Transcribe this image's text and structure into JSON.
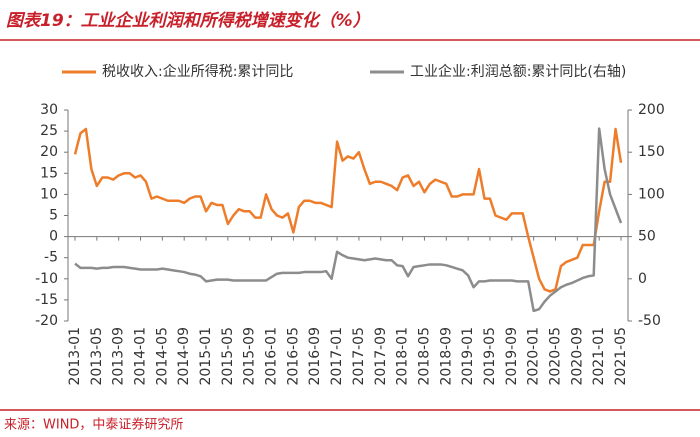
{
  "chart_data": {
    "type": "line",
    "title": "图表19：工业企业利润和所得税增速变化（%）",
    "source": "来源：WIND，中泰证券研究所",
    "categories": [
      "2013-01",
      null,
      null,
      null,
      "2013-05",
      null,
      null,
      null,
      "2013-09",
      null,
      null,
      null,
      "2014-01",
      null,
      null,
      null,
      "2014-05",
      null,
      null,
      null,
      "2014-09",
      null,
      null,
      null,
      "2015-01",
      null,
      null,
      null,
      "2015-05",
      null,
      null,
      null,
      "2015-09",
      null,
      null,
      null,
      "2016-01",
      null,
      null,
      null,
      "2016-05",
      null,
      null,
      null,
      "2016-09",
      null,
      null,
      null,
      "2017-01",
      null,
      null,
      null,
      "2017-05",
      null,
      null,
      null,
      "2017-09",
      null,
      null,
      null,
      "2018-01",
      null,
      null,
      null,
      "2018-05",
      null,
      null,
      null,
      "2018-09",
      null,
      null,
      null,
      "2019-01",
      null,
      null,
      null,
      "2019-05",
      null,
      null,
      null,
      "2019-09",
      null,
      null,
      null,
      "2020-01",
      null,
      null,
      null,
      "2020-05",
      null,
      null,
      null,
      "2020-09",
      null,
      null,
      null,
      "2021-01",
      null,
      null,
      null,
      "2021-05"
    ],
    "series": [
      {
        "name": "税收收入:企业所得税:累计同比",
        "color": "#ee7d2b",
        "axis": "y",
        "values": [
          19.5,
          24.5,
          25.5,
          16,
          12,
          14,
          14,
          13.5,
          14.5,
          15,
          15,
          14,
          14.5,
          13,
          9,
          9.5,
          9,
          8.5,
          8.5,
          8.5,
          8,
          9,
          9.5,
          9.5,
          6,
          8,
          7.5,
          7.5,
          3,
          5,
          6.5,
          6,
          6,
          4.5,
          4.5,
          10,
          6.5,
          5,
          4.5,
          5.5,
          1,
          7,
          8.5,
          8.5,
          8,
          8,
          7.5,
          7,
          22.5,
          18,
          19,
          18.5,
          20,
          16,
          12.5,
          13,
          13,
          12.5,
          12,
          11,
          14,
          14.5,
          12,
          13,
          10.5,
          12.5,
          13.5,
          13,
          12.5,
          9.5,
          9.5,
          10,
          10,
          10,
          16,
          9,
          9,
          5,
          4.5,
          4,
          5.5,
          5.5,
          5.5,
          0,
          -5,
          -10,
          -12.5,
          -13,
          -12.5,
          -7,
          -6,
          -5.5,
          -5,
          -2,
          -2,
          -2,
          6,
          13,
          13,
          25.5,
          17.5
        ]
      },
      {
        "name": "工业企业:利润总额:累计同比(右轴)",
        "color": "#8c8c8c",
        "axis": "y2",
        "values": [
          18,
          13,
          13,
          13,
          12,
          13,
          13,
          14,
          14,
          14,
          13,
          12,
          11,
          11,
          11,
          11,
          12,
          11,
          10,
          9,
          8,
          6,
          5,
          3,
          -3,
          -2,
          -1,
          -1,
          -1,
          -2,
          -2,
          -2,
          -2,
          -2,
          -2,
          -2,
          2,
          6,
          7,
          7,
          7,
          7,
          8,
          8,
          8,
          8,
          9,
          0,
          32,
          28,
          25,
          24,
          23,
          22,
          23,
          24,
          23,
          22,
          22,
          16,
          15,
          3,
          14,
          15,
          16,
          17,
          17,
          17,
          16,
          14,
          12,
          10,
          4,
          -10,
          -3,
          -3,
          -2,
          -2,
          -2,
          -2,
          -2,
          -3,
          -3,
          -3,
          -38,
          -36,
          -27,
          -20,
          -15,
          -10,
          -7,
          -5,
          -2,
          1,
          3,
          4,
          178,
          130,
          100,
          83,
          66
        ]
      }
    ],
    "ylim": [
      -20,
      30
    ],
    "yticks": [
      -20,
      -15,
      -10,
      -5,
      0,
      5,
      10,
      15,
      20,
      25,
      30
    ],
    "y2lim": [
      -50,
      200
    ],
    "y2ticks": [
      -50,
      0,
      50,
      100,
      150,
      200
    ],
    "grid": false,
    "legend": "top"
  }
}
